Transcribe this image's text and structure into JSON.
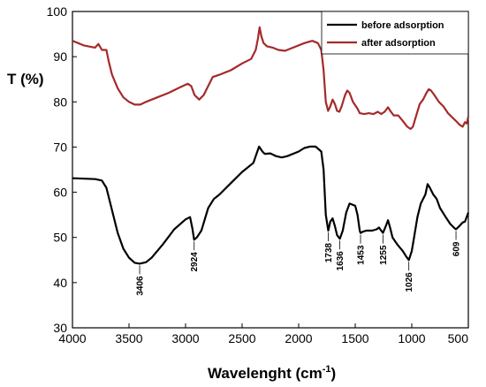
{
  "chart_data": {
    "type": "line",
    "title": "",
    "xlabel": "Wavelenght (cm",
    "xlabel_sup": "-1",
    "xlabel_close": ")",
    "ylabel": "T (%)",
    "xlim": [
      4000,
      500
    ],
    "ylim": [
      30,
      100
    ],
    "x_ticks": [
      4000,
      3500,
      3000,
      2500,
      2000,
      1500,
      1000,
      500
    ],
    "y_ticks": [
      30,
      40,
      50,
      60,
      70,
      80,
      90,
      100
    ],
    "grid": false,
    "legend_position": "top-right",
    "series": [
      {
        "name": "before adsorption",
        "color": "#000000",
        "points": [
          [
            4000,
            63.1
          ],
          [
            3900,
            63.0
          ],
          [
            3800,
            62.9
          ],
          [
            3740,
            62.6
          ],
          [
            3700,
            61.0
          ],
          [
            3650,
            56.0
          ],
          [
            3600,
            51.0
          ],
          [
            3550,
            47.5
          ],
          [
            3500,
            45.5
          ],
          [
            3450,
            44.4
          ],
          [
            3406,
            44.2
          ],
          [
            3350,
            44.5
          ],
          [
            3300,
            45.5
          ],
          [
            3200,
            48.5
          ],
          [
            3100,
            51.8
          ],
          [
            3000,
            54.0
          ],
          [
            2960,
            54.5
          ],
          [
            2940,
            52.0
          ],
          [
            2924,
            49.5
          ],
          [
            2900,
            50.0
          ],
          [
            2860,
            51.5
          ],
          [
            2800,
            56.5
          ],
          [
            2750,
            58.5
          ],
          [
            2700,
            59.5
          ],
          [
            2600,
            62.0
          ],
          [
            2500,
            64.5
          ],
          [
            2400,
            66.5
          ],
          [
            2380,
            68.0
          ],
          [
            2350,
            70.1
          ],
          [
            2320,
            69.0
          ],
          [
            2300,
            68.5
          ],
          [
            2250,
            68.6
          ],
          [
            2200,
            68.0
          ],
          [
            2150,
            67.7
          ],
          [
            2100,
            68.0
          ],
          [
            2000,
            69.0
          ],
          [
            1950,
            69.8
          ],
          [
            1900,
            70.1
          ],
          [
            1850,
            70.1
          ],
          [
            1800,
            69.0
          ],
          [
            1780,
            65.0
          ],
          [
            1760,
            55.0
          ],
          [
            1738,
            51.5
          ],
          [
            1720,
            53.5
          ],
          [
            1700,
            54.2
          ],
          [
            1680,
            52.5
          ],
          [
            1660,
            50.5
          ],
          [
            1636,
            49.7
          ],
          [
            1610,
            51.5
          ],
          [
            1580,
            55.5
          ],
          [
            1550,
            57.5
          ],
          [
            1500,
            57.0
          ],
          [
            1480,
            55.0
          ],
          [
            1460,
            51.5
          ],
          [
            1453,
            51.0
          ],
          [
            1430,
            51.3
          ],
          [
            1400,
            51.5
          ],
          [
            1350,
            51.5
          ],
          [
            1310,
            51.8
          ],
          [
            1290,
            52.2
          ],
          [
            1270,
            51.5
          ],
          [
            1255,
            51.0
          ],
          [
            1230,
            52.5
          ],
          [
            1210,
            53.8
          ],
          [
            1190,
            52.0
          ],
          [
            1170,
            50.0
          ],
          [
            1130,
            48.5
          ],
          [
            1080,
            47.0
          ],
          [
            1050,
            45.8
          ],
          [
            1026,
            45.0
          ],
          [
            1000,
            47.0
          ],
          [
            980,
            50.0
          ],
          [
            950,
            54.5
          ],
          [
            920,
            57.5
          ],
          [
            880,
            59.5
          ],
          [
            860,
            61.8
          ],
          [
            840,
            61.0
          ],
          [
            810,
            59.5
          ],
          [
            780,
            58.5
          ],
          [
            750,
            56.5
          ],
          [
            700,
            54.5
          ],
          [
            660,
            53.0
          ],
          [
            620,
            52.0
          ],
          [
            609,
            51.8
          ],
          [
            580,
            52.5
          ],
          [
            550,
            53.3
          ],
          [
            530,
            53.5
          ],
          [
            515,
            54.5
          ],
          [
            500,
            55.5
          ]
        ]
      },
      {
        "name": "after adsorption",
        "color": "#a52a2a",
        "points": [
          [
            4000,
            93.5
          ],
          [
            3900,
            92.5
          ],
          [
            3800,
            92.0
          ],
          [
            3770,
            92.8
          ],
          [
            3740,
            91.5
          ],
          [
            3700,
            91.5
          ],
          [
            3680,
            89.0
          ],
          [
            3650,
            86.0
          ],
          [
            3600,
            83.0
          ],
          [
            3550,
            81.0
          ],
          [
            3500,
            80.0
          ],
          [
            3450,
            79.4
          ],
          [
            3400,
            79.4
          ],
          [
            3350,
            80.0
          ],
          [
            3250,
            81.0
          ],
          [
            3150,
            82.0
          ],
          [
            3050,
            83.2
          ],
          [
            2980,
            84.0
          ],
          [
            2950,
            83.5
          ],
          [
            2920,
            81.5
          ],
          [
            2880,
            80.5
          ],
          [
            2840,
            81.5
          ],
          [
            2800,
            83.5
          ],
          [
            2760,
            85.5
          ],
          [
            2700,
            86.0
          ],
          [
            2600,
            87.0
          ],
          [
            2500,
            88.5
          ],
          [
            2420,
            89.5
          ],
          [
            2380,
            91.5
          ],
          [
            2360,
            94.0
          ],
          [
            2345,
            96.5
          ],
          [
            2330,
            94.5
          ],
          [
            2310,
            93.0
          ],
          [
            2280,
            92.3
          ],
          [
            2230,
            92.0
          ],
          [
            2180,
            91.5
          ],
          [
            2120,
            91.3
          ],
          [
            2050,
            92.0
          ],
          [
            1950,
            93.0
          ],
          [
            1880,
            93.5
          ],
          [
            1830,
            93.0
          ],
          [
            1800,
            91.5
          ],
          [
            1780,
            87.0
          ],
          [
            1760,
            80.0
          ],
          [
            1740,
            78.0
          ],
          [
            1720,
            79.0
          ],
          [
            1700,
            80.5
          ],
          [
            1680,
            79.5
          ],
          [
            1660,
            78.0
          ],
          [
            1640,
            77.8
          ],
          [
            1620,
            79.0
          ],
          [
            1590,
            81.5
          ],
          [
            1570,
            82.5
          ],
          [
            1550,
            82.0
          ],
          [
            1520,
            80.0
          ],
          [
            1480,
            78.5
          ],
          [
            1460,
            77.5
          ],
          [
            1420,
            77.3
          ],
          [
            1380,
            77.5
          ],
          [
            1340,
            77.3
          ],
          [
            1300,
            77.8
          ],
          [
            1270,
            77.3
          ],
          [
            1240,
            77.8
          ],
          [
            1210,
            78.8
          ],
          [
            1190,
            78.0
          ],
          [
            1160,
            77.0
          ],
          [
            1120,
            77.0
          ],
          [
            1080,
            75.8
          ],
          [
            1040,
            74.5
          ],
          [
            1010,
            74.0
          ],
          [
            990,
            74.5
          ],
          [
            960,
            77.0
          ],
          [
            930,
            79.5
          ],
          [
            900,
            80.5
          ],
          [
            870,
            82.0
          ],
          [
            850,
            82.8
          ],
          [
            830,
            82.5
          ],
          [
            800,
            81.5
          ],
          [
            760,
            80.0
          ],
          [
            720,
            79.0
          ],
          [
            680,
            77.5
          ],
          [
            640,
            76.5
          ],
          [
            610,
            75.8
          ],
          [
            580,
            75.0
          ],
          [
            550,
            74.5
          ],
          [
            530,
            75.5
          ],
          [
            515,
            75.2
          ],
          [
            505,
            76.2
          ],
          [
            500,
            76.8
          ]
        ]
      }
    ],
    "annotations": [
      {
        "label": "3406",
        "x": 3406,
        "y": 44.2
      },
      {
        "label": "2924",
        "x": 2924,
        "y": 49.5
      },
      {
        "label": "1738",
        "x": 1738,
        "y": 51.5
      },
      {
        "label": "1636",
        "x": 1636,
        "y": 49.7
      },
      {
        "label": "1453",
        "x": 1453,
        "y": 51.0
      },
      {
        "label": "1255",
        "x": 1255,
        "y": 51.0
      },
      {
        "label": "1026",
        "x": 1026,
        "y": 45.0
      },
      {
        "label": "609",
        "x": 609,
        "y": 51.8
      }
    ]
  }
}
